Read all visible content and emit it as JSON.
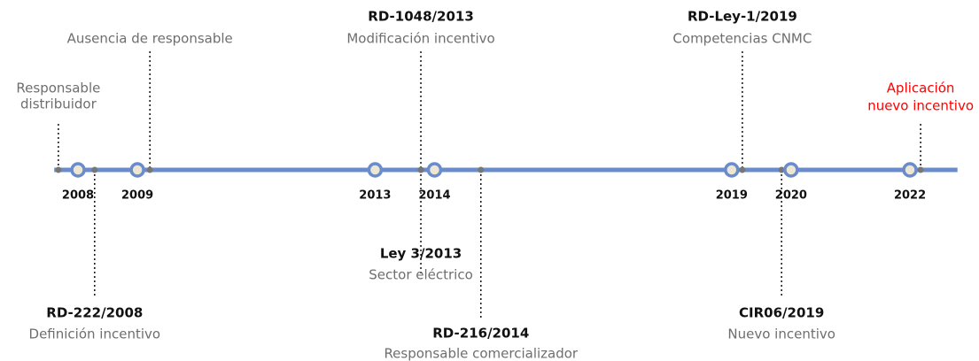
{
  "chart_data": {
    "type": "timeline",
    "xlim": [
      2007.6,
      2022.8
    ],
    "line_color": "#6a8ccc",
    "marker_fill": "#ece6d2",
    "xticks": [
      2008,
      2009,
      2013,
      2014,
      2019,
      2020,
      2022
    ],
    "events": [
      {
        "x": 2007.67,
        "side": "above",
        "color": "#6e6e6e",
        "text": [
          "Responsable",
          "distribuidor"
        ]
      },
      {
        "x": 2008.28,
        "side": "below",
        "color": "#6e6e6e",
        "title": "RD-222/2008",
        "text": [
          "Definición incentivo"
        ]
      },
      {
        "x": 2009.21,
        "side": "above",
        "color": "#6e6e6e",
        "text": [
          "Ausencia de responsable"
        ]
      },
      {
        "x": 2013.77,
        "side": "above",
        "color": "#6e6e6e",
        "title": "RD-1048/2013",
        "text": [
          "Modificación incentivo"
        ]
      },
      {
        "x": 2013.77,
        "side": "below",
        "color": "#6e6e6e",
        "title": "Ley 3/2013",
        "text": [
          "Sector eléctrico"
        ]
      },
      {
        "x": 2014.78,
        "side": "below",
        "color": "#6e6e6e",
        "title": "RD-216/2014",
        "text": [
          "Responsable comercializador"
        ]
      },
      {
        "x": 2019.18,
        "side": "above",
        "color": "#6e6e6e",
        "title": "RD-Ley-1/2019",
        "text": [
          "Competencias CNMC"
        ]
      },
      {
        "x": 2019.84,
        "side": "below",
        "color": "#6e6e6e",
        "title": "CIR06/2019",
        "text": [
          "Nuevo incentivo"
        ]
      },
      {
        "x": 2022.18,
        "side": "above",
        "color": "#ff0000",
        "text": [
          "Aplicación",
          "nuevo incentivo"
        ]
      }
    ]
  }
}
